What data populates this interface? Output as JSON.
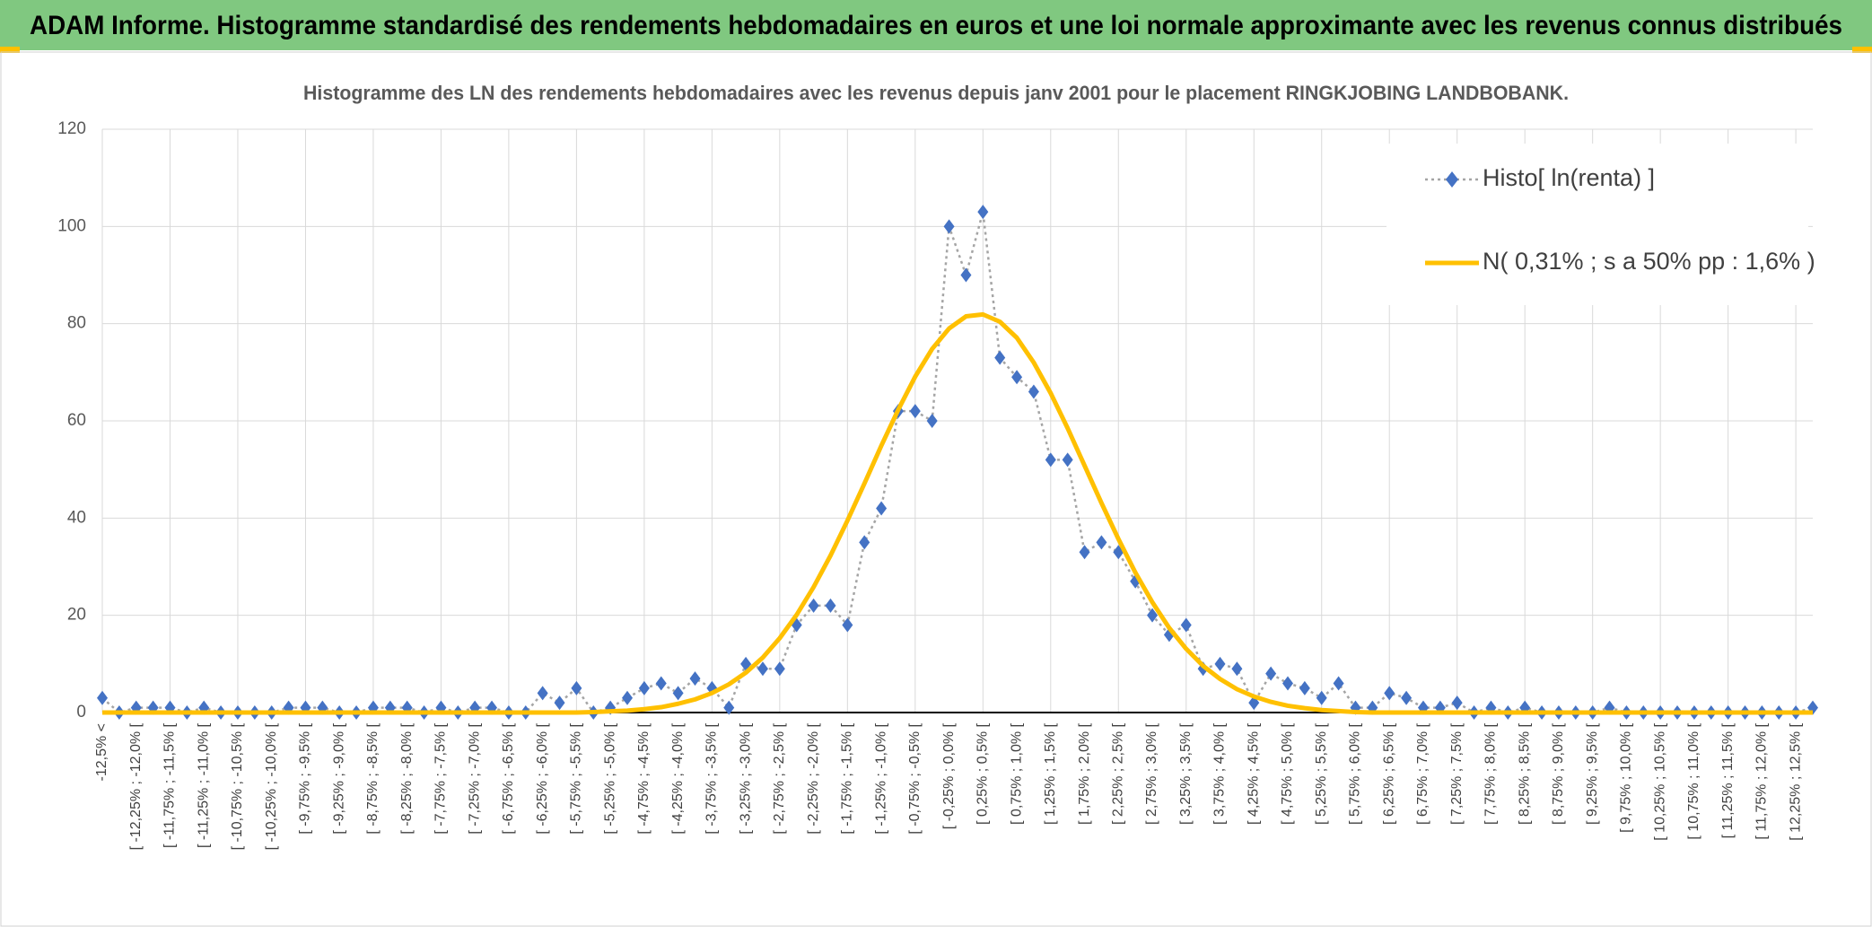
{
  "header": {
    "title": "ADAM Informe. Histogramme standardisé des rendements hebdomadaires en euros et une loi normale approximante avec les revenus connus distribués"
  },
  "chart_data": {
    "type": "line",
    "title": "Histogramme des LN des rendements hebdomadaires avec les revenus depuis janv 2001 pour le placement RINGKJOBING LANDBOBANK.",
    "categories": [
      "-12,5% <",
      null,
      "[ -12,25% ; -12,0% [",
      null,
      "[ -11,75% ; -11,5% [",
      null,
      "[ -11,25% ; -11,0% [",
      null,
      "[ -10,75% ; -10,5% [",
      null,
      "[ -10,25% ; -10,0% [",
      null,
      "[ -9,75% ; -9,5% [",
      null,
      "[ -9,25% ; -9,0% [",
      null,
      "[ -8,75% ; -8,5% [",
      null,
      "[ -8,25% ; -8,0% [",
      null,
      "[ -7,75% ; -7,5% [",
      null,
      "[ -7,25% ; -7,0% [",
      null,
      "[ -6,75% ; -6,5% [",
      null,
      "[ -6,25% ; -6,0% [",
      null,
      "[ -5,75% ; -5,5% [",
      null,
      "[ -5,25% ; -5,0% [",
      null,
      "[ -4,75% ; -4,5% [",
      null,
      "[ -4,25% ; -4,0% [",
      null,
      "[ -3,75% ; -3,5% [",
      null,
      "[ -3,25% ; -3,0% [",
      null,
      "[ -2,75% ; -2,5% [",
      null,
      "[ -2,25% ; -2,0% [",
      null,
      "[ -1,75% ; -1,5% [",
      null,
      "[ -1,25% ; -1,0% [",
      null,
      "[ -0,75% ; -0,5% [",
      null,
      "[ -0,25% ; 0,0% [",
      null,
      "[ 0,25% ; 0,5% [",
      null,
      "[ 0,75% ; 1,0% [",
      null,
      "[ 1,25% ; 1,5% [",
      null,
      "[ 1,75% ; 2,0% [",
      null,
      "[ 2,25% ; 2,5% [",
      null,
      "[ 2,75% ; 3,0% [",
      null,
      "[ 3,25% ; 3,5% [",
      null,
      "[ 3,75% ; 4,0% [",
      null,
      "[ 4,25% ; 4,5% [",
      null,
      "[ 4,75% ; 5,0% [",
      null,
      "[ 5,25% ; 5,5% [",
      null,
      "[ 5,75% ; 6,0% [",
      null,
      "[ 6,25% ; 6,5% [",
      null,
      "[ 6,75% ; 7,0% [",
      null,
      "[ 7,25% ; 7,5% [",
      null,
      "[ 7,75% ; 8,0% [",
      null,
      "[ 8,25% ; 8,5% [",
      null,
      "[ 8,75% ; 9,0% [",
      null,
      "[ 9,25% ; 9,5% [",
      null,
      "[ 9,75% ; 10,0% [",
      null,
      "[ 10,25% ; 10,5% [",
      null,
      "[ 10,75% ; 11,0% [",
      null,
      "[ 11,25% ; 11,5% [",
      null,
      "[ 11,75% ; 12,0% [",
      null,
      "[ 12,25% ; 12,5% [",
      null
    ],
    "series": [
      {
        "name": "Histo[ ln(renta) ]",
        "color": "#4472c4",
        "line_color": "#a5a5a5",
        "line_style": "dotted",
        "marker": "diamond",
        "values": [
          3,
          0,
          1,
          1,
          1,
          0,
          1,
          0,
          0,
          0,
          0,
          1,
          1,
          1,
          0,
          0,
          1,
          1,
          1,
          0,
          1,
          0,
          1,
          1,
          0,
          0,
          4,
          2,
          5,
          0,
          1,
          3,
          5,
          6,
          4,
          7,
          5,
          1,
          10,
          9,
          9,
          18,
          22,
          22,
          18,
          35,
          42,
          62,
          62,
          60,
          100,
          90,
          103,
          73,
          69,
          66,
          52,
          52,
          33,
          35,
          33,
          27,
          20,
          16,
          18,
          9,
          10,
          9,
          2,
          8,
          6,
          5,
          3,
          6,
          1,
          1,
          4,
          3,
          1,
          1,
          2,
          0,
          1,
          0,
          1,
          0,
          0,
          0,
          0,
          1,
          0,
          0,
          0,
          0,
          0,
          0,
          0,
          0,
          0,
          0,
          0,
          1
        ]
      },
      {
        "name": "N( 0,31% ; s a 50% pp : 1,6% )",
        "color": "#ffc000",
        "line_style": "solid",
        "marker": "none",
        "values": [
          0,
          0,
          0,
          0,
          0,
          0,
          0,
          0,
          0,
          0,
          0,
          0,
          0,
          0,
          0,
          0,
          0,
          0,
          0,
          0,
          0,
          0,
          0,
          0,
          0,
          0,
          0,
          0,
          0,
          0.1,
          0.25,
          0.4,
          0.7,
          1.1,
          1.8,
          2.7,
          4.0,
          5.8,
          8.2,
          11.3,
          15.3,
          20.1,
          25.8,
          32.3,
          39.5,
          47.1,
          54.9,
          62.3,
          69.1,
          74.8,
          79.0,
          81.5,
          81.9,
          80.4,
          77.1,
          72.0,
          65.7,
          58.5,
          50.8,
          43.1,
          35.7,
          28.8,
          22.7,
          17.4,
          13.1,
          9.6,
          6.9,
          4.8,
          3.3,
          2.2,
          1.4,
          0.9,
          0.5,
          0.3,
          0.1,
          0,
          0,
          0,
          0,
          0,
          0,
          0,
          0,
          0,
          0,
          0,
          0,
          0,
          0,
          0,
          0,
          0,
          0,
          0,
          0,
          0,
          0,
          0,
          0,
          0,
          0,
          0
        ]
      }
    ],
    "ylim": [
      0,
      120
    ],
    "yticks": [
      0,
      20,
      40,
      60,
      80,
      100,
      120
    ],
    "grid": true,
    "legend": "upper right"
  }
}
